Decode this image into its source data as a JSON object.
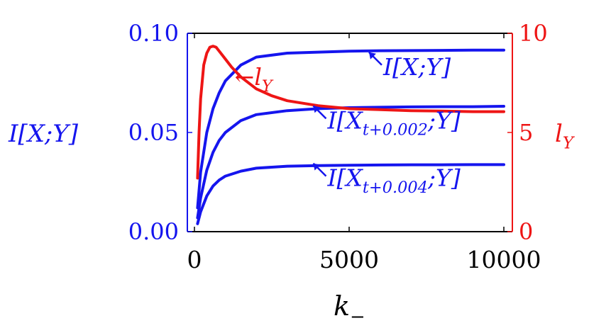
{
  "chart_data": {
    "type": "line",
    "x_axis": {
      "label": "k",
      "label_subscript": "−",
      "range": [
        0,
        10000
      ],
      "ticks": [
        0,
        5000,
        10000
      ],
      "tick_labels": [
        "0",
        "5000",
        "10000"
      ]
    },
    "y_left": {
      "label_main": "I[X;Y]",
      "range": [
        0.0,
        0.1
      ],
      "ticks": [
        0.0,
        0.05,
        0.1
      ],
      "tick_labels": [
        "0.00",
        "0.05",
        "0.10"
      ],
      "color": "#1515ee"
    },
    "y_right": {
      "label_main": "l",
      "label_subscript": "Y",
      "range": [
        0,
        10
      ],
      "ticks": [
        0,
        5,
        10
      ],
      "tick_labels": [
        "0",
        "5",
        "10"
      ],
      "color": "#ee1515"
    },
    "grid": false,
    "series": [
      {
        "axis": "left",
        "color": "#1515ee",
        "x": [
          100,
          200,
          400,
          600,
          800,
          1000,
          1500,
          2000,
          3000,
          4000,
          5000,
          6000,
          7000,
          8000,
          9000,
          10000
        ],
        "y": [
          0.012,
          0.03,
          0.05,
          0.062,
          0.07,
          0.076,
          0.084,
          0.088,
          0.09,
          0.0905,
          0.091,
          0.0912,
          0.0913,
          0.0914,
          0.0915,
          0.0915
        ]
      },
      {
        "axis": "left",
        "color": "#1515ee",
        "x": [
          100,
          200,
          400,
          600,
          800,
          1000,
          1500,
          2000,
          3000,
          4000,
          5000,
          6000,
          7000,
          8000,
          9000,
          10000
        ],
        "y": [
          0.007,
          0.017,
          0.031,
          0.04,
          0.046,
          0.05,
          0.056,
          0.059,
          0.061,
          0.062,
          0.0625,
          0.0627,
          0.0629,
          0.063,
          0.063,
          0.0632
        ]
      },
      {
        "axis": "left",
        "color": "#1515ee",
        "x": [
          100,
          200,
          400,
          600,
          800,
          1000,
          1500,
          2000,
          3000,
          4000,
          5000,
          6000,
          7000,
          8000,
          9000,
          10000
        ],
        "y": [
          0.004,
          0.01,
          0.018,
          0.023,
          0.026,
          0.028,
          0.0305,
          0.032,
          0.033,
          0.0333,
          0.0335,
          0.0336,
          0.0337,
          0.0337,
          0.0338,
          0.0338
        ]
      },
      {
        "axis": "right",
        "color": "#ee1515",
        "x": [
          100,
          150,
          200,
          300,
          400,
          500,
          600,
          700,
          800,
          1000,
          1200,
          1500,
          2000,
          2500,
          3000,
          4000,
          5000,
          6000,
          7000,
          8000,
          9000,
          10000
        ],
        "y": [
          2.7,
          5.0,
          6.7,
          8.4,
          9.0,
          9.3,
          9.35,
          9.3,
          9.1,
          8.7,
          8.3,
          7.8,
          7.2,
          6.85,
          6.6,
          6.35,
          6.2,
          6.15,
          6.1,
          6.08,
          6.05,
          6.05
        ]
      }
    ],
    "annotations": [
      {
        "axis": "right",
        "label_main": "←l",
        "label_subscript": "Y",
        "color": "#ee1515",
        "x": 1300,
        "y": 7.4
      },
      {
        "axis": "left",
        "label_main": "I[X;Y]",
        "color": "#1515ee",
        "x": 6100,
        "y": 0.079
      },
      {
        "axis": "left",
        "label_main": "I[X",
        "label_subscript": "t+0.002",
        "label_tail": ";Y]",
        "color": "#1515ee",
        "x": 4300,
        "y": 0.052
      },
      {
        "axis": "left",
        "label_main": "I[X",
        "label_subscript": "t+0.004",
        "label_tail": ";Y]",
        "color": "#1515ee",
        "x": 4300,
        "y": 0.023
      }
    ]
  }
}
